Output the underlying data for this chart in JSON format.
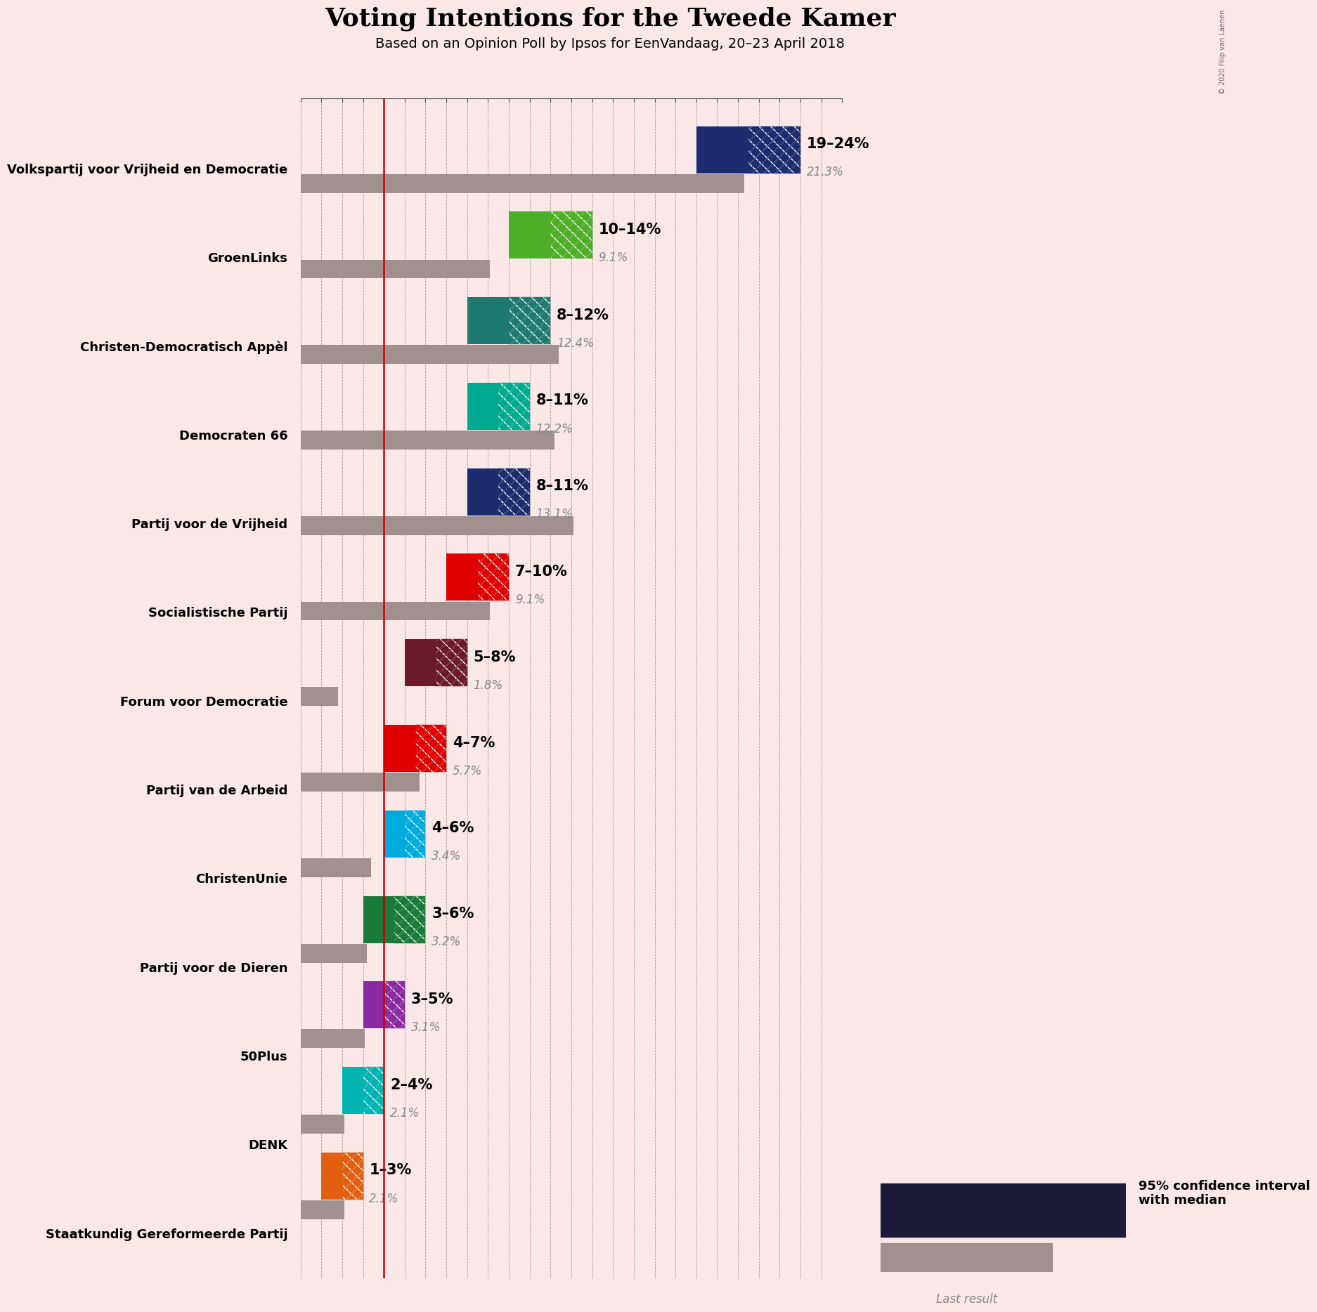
{
  "title": "Voting Intentions for the Tweede Kamer",
  "subtitle": "Based on an Opinion Poll by Ipsos for EenVandaag, 20–23 April 2018",
  "copyright": "© 2020 Filip van Laenen",
  "background_color": "#fae8e8",
  "parties": [
    {
      "name": "Volkspartij voor Vrijheid en Democratie",
      "low": 19,
      "high": 24,
      "median": 21.5,
      "last": 21.3,
      "color": "#1c2c6e"
    },
    {
      "name": "GroenLinks",
      "low": 10,
      "high": 14,
      "median": 12.0,
      "last": 9.1,
      "color": "#4daf27"
    },
    {
      "name": "Christen-Democratisch Appèl",
      "low": 8,
      "high": 12,
      "median": 10.0,
      "last": 12.4,
      "color": "#1e7a6e"
    },
    {
      "name": "Democraten 66",
      "low": 8,
      "high": 11,
      "median": 9.5,
      "last": 12.2,
      "color": "#00a98f"
    },
    {
      "name": "Partij voor de Vrijheid",
      "low": 8,
      "high": 11,
      "median": 9.5,
      "last": 13.1,
      "color": "#1c2c6e"
    },
    {
      "name": "Socialistische Partij",
      "low": 7,
      "high": 10,
      "median": 8.5,
      "last": 9.1,
      "color": "#e10000"
    },
    {
      "name": "Forum voor Democratie",
      "low": 5,
      "high": 8,
      "median": 6.5,
      "last": 1.8,
      "color": "#6b1a2a"
    },
    {
      "name": "Partij van de Arbeid",
      "low": 4,
      "high": 7,
      "median": 5.5,
      "last": 5.7,
      "color": "#e10000"
    },
    {
      "name": "ChristenUnie",
      "low": 4,
      "high": 6,
      "median": 5.0,
      "last": 3.4,
      "color": "#00aadd"
    },
    {
      "name": "Partij voor de Dieren",
      "low": 3,
      "high": 6,
      "median": 4.5,
      "last": 3.2,
      "color": "#1a7a3a"
    },
    {
      "name": "50Plus",
      "low": 3,
      "high": 5,
      "median": 4.0,
      "last": 3.1,
      "color": "#8b29a0"
    },
    {
      "name": "DENK",
      "low": 2,
      "high": 4,
      "median": 3.0,
      "last": 2.1,
      "color": "#00b3b3"
    },
    {
      "name": "Staatkundig Gereformeerde Partij",
      "low": 1,
      "high": 3,
      "median": 2.0,
      "last": 2.1,
      "color": "#e06010"
    }
  ],
  "range_labels": [
    "19–24%",
    "10–14%",
    "8–12%",
    "8–11%",
    "8–11%",
    "7–10%",
    "5–8%",
    "4–7%",
    "4–6%",
    "3–6%",
    "3–5%",
    "2–4%",
    "1–3%"
  ],
  "last_labels": [
    "21.3%",
    "9.1%",
    "12.4%",
    "12.2%",
    "13.1%",
    "9.1%",
    "1.8%",
    "5.7%",
    "3.4%",
    "3.2%",
    "3.1%",
    "2.1%",
    "2.1%"
  ],
  "last_color": "#a09090",
  "xmax": 26,
  "red_line_x": 4.0,
  "bar_height": 0.55,
  "last_bar_height": 0.22,
  "legend_text_ci": "95% confidence interval\nwith median",
  "legend_text_last": "Last result",
  "legend_color": "#1c1c3a"
}
